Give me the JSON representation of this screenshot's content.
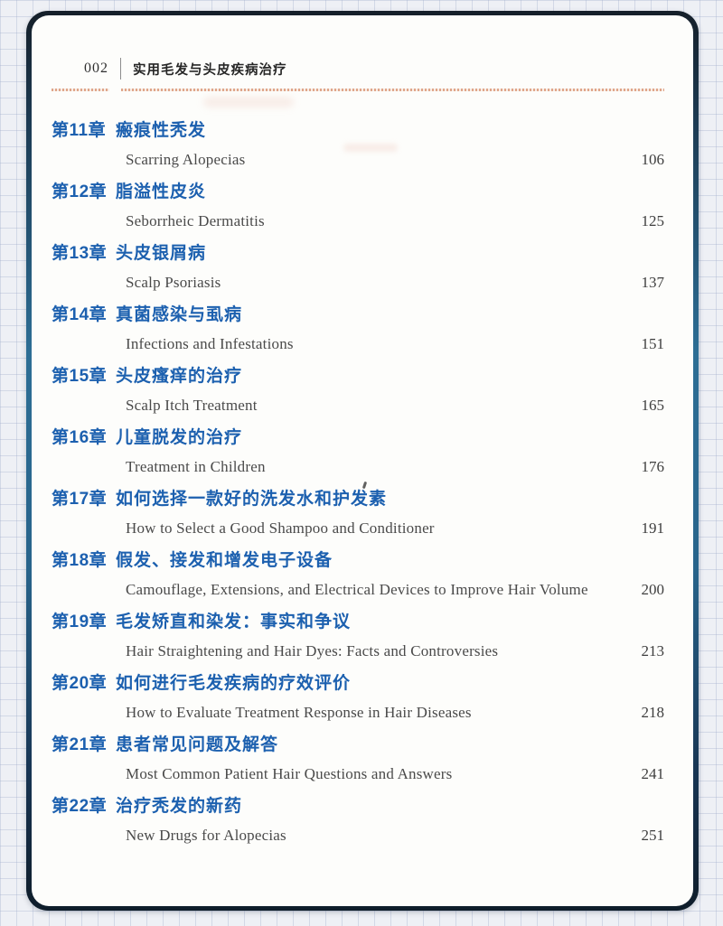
{
  "header": {
    "page_number": "002",
    "book_title": "实用毛发与头皮疾病治疗"
  },
  "toc": [
    {
      "label": "第11章",
      "title": "瘢痕性秃发",
      "subtitle": "Scarring Alopecias",
      "page": "106"
    },
    {
      "label": "第12章",
      "title": "脂溢性皮炎",
      "subtitle": "Seborrheic Dermatitis",
      "page": "125"
    },
    {
      "label": "第13章",
      "title": "头皮银屑病",
      "subtitle": "Scalp Psoriasis",
      "page": "137"
    },
    {
      "label": "第14章",
      "title": "真菌感染与虱病",
      "subtitle": "Infections and Infestations",
      "page": "151"
    },
    {
      "label": "第15章",
      "title": "头皮瘙痒的治疗",
      "subtitle": "Scalp Itch Treatment",
      "page": "165"
    },
    {
      "label": "第16章",
      "title": "儿童脱发的治疗",
      "subtitle": "Treatment in Children",
      "page": "176"
    },
    {
      "label": "第17章",
      "title": "如何选择一款好的洗发水和护发素",
      "subtitle": "How to Select a Good Shampoo and Conditioner",
      "page": "191"
    },
    {
      "label": "第18章",
      "title": "假发、接发和增发电子设备",
      "subtitle": "Camouflage, Extensions, and Electrical Devices to Improve Hair Volume",
      "page": "200"
    },
    {
      "label": "第19章",
      "title": "毛发矫直和染发：事实和争议",
      "subtitle": "Hair Straightening and Hair Dyes: Facts and Controversies",
      "page": "213"
    },
    {
      "label": "第20章",
      "title": "如何进行毛发疾病的疗效评价",
      "subtitle": "How to Evaluate Treatment Response in Hair Diseases",
      "page": "218"
    },
    {
      "label": "第21章",
      "title": "患者常见问题及解答",
      "subtitle": "Most Common Patient Hair Questions and Answers",
      "page": "241"
    },
    {
      "label": "第22章",
      "title": "治疗秃发的新药",
      "subtitle": "New Drugs for Alopecias",
      "page": "251"
    }
  ],
  "colors": {
    "chapter_blue": "#1c60af",
    "rule_salmon": "#dfa68a",
    "border_navy": "#151f29",
    "border_blue": "#2d6e95",
    "english_gray": "#4a4a4a"
  }
}
